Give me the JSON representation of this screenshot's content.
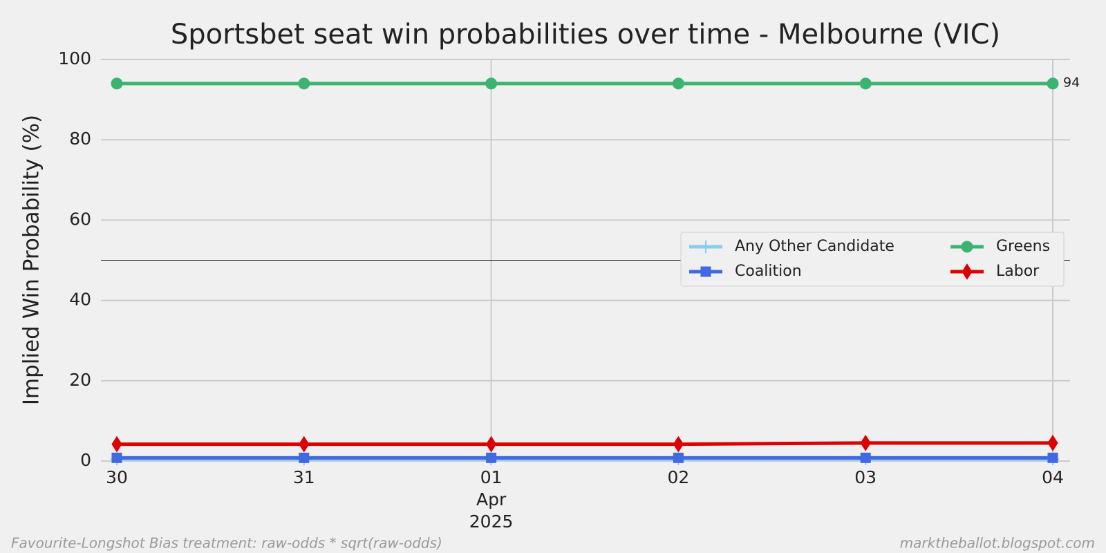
{
  "chart_data": {
    "type": "line",
    "title": "Sportsbet seat win probabilities over time - Melbourne (VIC)",
    "y_label": "Implied Win Probability (%)",
    "categories": [
      "30",
      "31",
      "01",
      "02",
      "03",
      "04"
    ],
    "month_label": "Apr",
    "year_label": "2025",
    "x_grid_at": [
      "01",
      "04"
    ],
    "series": [
      {
        "name": "Any Other Candidate",
        "color": "#87ceeb",
        "marker": "plus",
        "values": [
          0.5,
          0.5,
          0.5,
          0.5,
          0.5,
          0.5
        ]
      },
      {
        "name": "Coalition",
        "color": "#4169e1",
        "marker": "square",
        "values": [
          0.8,
          0.8,
          0.8,
          0.8,
          0.8,
          0.8
        ]
      },
      {
        "name": "Greens",
        "color": "#3cb371",
        "marker": "circle",
        "values": [
          94,
          94,
          94,
          94,
          94,
          94
        ],
        "end_label": true
      },
      {
        "name": "Labor",
        "color": "#dd0000",
        "marker": "diamond",
        "values": [
          4.2,
          4.2,
          4.2,
          4.2,
          4.5,
          4.5
        ]
      }
    ],
    "ylim": [
      0,
      100
    ],
    "yticks": [
      0,
      20,
      40,
      60,
      80,
      100
    ],
    "grid": true,
    "hline": 50,
    "legend": "center right",
    "legend_columns": 2,
    "footer_left": "Favourite-Longshot Bias treatment: raw-odds * sqrt(raw-odds)",
    "footer_right": "marktheballot.blogspot.com"
  }
}
